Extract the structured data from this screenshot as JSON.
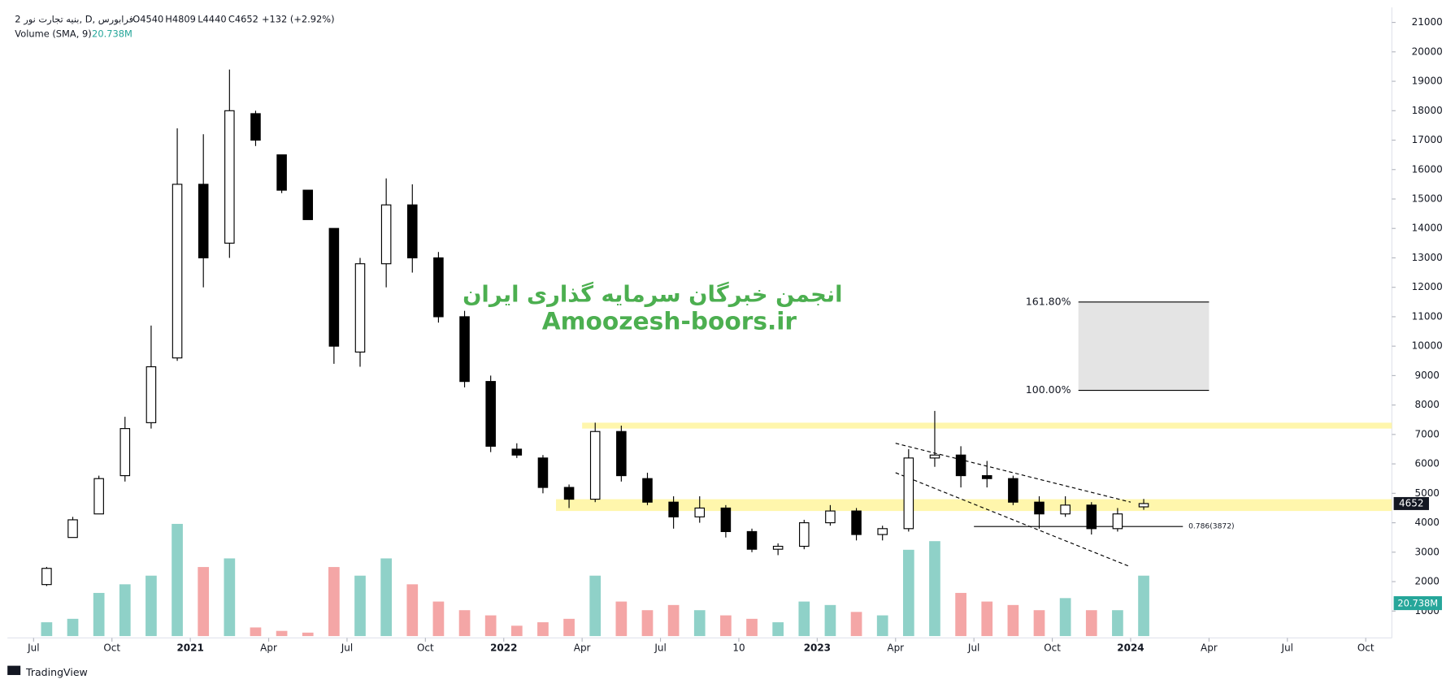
{
  "header": {
    "symbol": "بنیه تجارت نور 2, D, فرابورس",
    "ohlc": [
      "O4540",
      "H4809",
      "L4440",
      "C4652"
    ],
    "change": "+132 (+2.92%)",
    "volume_study": "Volume (SMA, 9)",
    "volume_sma": "20.738M"
  },
  "chart_data": {
    "type": "candlestick",
    "x": [
      "2020-07",
      "2020-08",
      "2020-09",
      "2020-10",
      "2020-11",
      "2020-12",
      "2021-01",
      "2021-02",
      "2021-03",
      "2021-04",
      "2021-05",
      "2021-06",
      "2021-07",
      "2021-08",
      "2021-09",
      "2021-10",
      "2021-11",
      "2021-12",
      "2022-01",
      "2022-02",
      "2022-03",
      "2022-04",
      "2022-05",
      "2022-06",
      "2022-07",
      "2022-08",
      "2022-09",
      "2022-10",
      "2022-11",
      "2022-12",
      "2023-01",
      "2023-02",
      "2023-03",
      "2023-04",
      "2023-05",
      "2023-06",
      "2023-07",
      "2023-08",
      "2023-09",
      "2023-10",
      "2023-11",
      "2023-12",
      "2024-01"
    ],
    "open": [
      1900,
      3500,
      4300,
      5600,
      7400,
      9600,
      15500,
      13500,
      17900,
      16500,
      15300,
      14000,
      9800,
      12800,
      14800,
      13000,
      11000,
      8800,
      6500,
      6200,
      5200,
      4800,
      7100,
      5500,
      4700,
      4200,
      4500,
      3700,
      3100,
      3200,
      4000,
      4400,
      3600,
      3800,
      6200,
      6300,
      5600,
      5500,
      4700,
      4300,
      4600,
      3800,
      4540
    ],
    "high": [
      2500,
      4200,
      5600,
      7600,
      10700,
      17400,
      17200,
      19400,
      18000,
      16500,
      15300,
      14000,
      13000,
      15700,
      15500,
      13200,
      11200,
      9000,
      6700,
      6300,
      5300,
      7400,
      7300,
      5700,
      4900,
      4900,
      4600,
      3800,
      3300,
      4100,
      4600,
      4500,
      3900,
      6500,
      7800,
      6600,
      6100,
      5600,
      4900,
      4900,
      4700,
      4500,
      4809
    ],
    "low": [
      1850,
      3500,
      4300,
      5400,
      7200,
      9500,
      12000,
      13000,
      16800,
      15200,
      14300,
      9400,
      9300,
      12000,
      12500,
      10800,
      8600,
      6400,
      6200,
      5000,
      4500,
      4700,
      5400,
      4600,
      3800,
      4000,
      3500,
      3000,
      2900,
      3100,
      3900,
      3400,
      3400,
      3700,
      5900,
      5200,
      5200,
      4600,
      3800,
      4200,
      3600,
      3700,
      4440
    ],
    "close": [
      2450,
      4100,
      5500,
      7200,
      9300,
      15500,
      13000,
      18000,
      17000,
      15300,
      14300,
      10000,
      12800,
      14800,
      13000,
      11000,
      8800,
      6600,
      6300,
      5200,
      4800,
      7100,
      5600,
      4700,
      4200,
      4500,
      3700,
      3100,
      3200,
      4000,
      4400,
      3600,
      3800,
      6200,
      6300,
      5600,
      5500,
      4700,
      4300,
      4600,
      3800,
      4300,
      4652
    ],
    "volume": [
      8,
      10,
      25,
      30,
      35,
      65,
      40,
      45,
      5,
      3,
      2,
      40,
      35,
      45,
      30,
      20,
      15,
      12,
      6,
      8,
      10,
      35,
      20,
      15,
      18,
      15,
      12,
      10,
      8,
      20,
      18,
      14,
      12,
      50,
      55,
      25,
      20,
      18,
      15,
      22,
      15,
      15,
      35
    ],
    "up_color": "#ffffff",
    "down_color": "#000000",
    "volume_up_color": "#8fd1c8",
    "volume_down_color": "#f4a6a6",
    "ylim": [
      0,
      21500
    ],
    "yticks": [
      1000,
      2000,
      3000,
      4000,
      5000,
      6000,
      7000,
      8000,
      9000,
      10000,
      11000,
      12000,
      13000,
      14000,
      15000,
      16000,
      17000,
      18000,
      19000,
      20000,
      21000
    ],
    "xlim": [
      "2020-06",
      "2024-11"
    ],
    "xticks": [
      {
        "value": "2020-07",
        "label": "Jul"
      },
      {
        "value": "2020-10",
        "label": "Oct"
      },
      {
        "value": "2021-01",
        "label": "2021"
      },
      {
        "value": "2021-04",
        "label": "Apr"
      },
      {
        "value": "2021-07",
        "label": "Jul"
      },
      {
        "value": "2021-10",
        "label": "Oct"
      },
      {
        "value": "2022-01",
        "label": "2022"
      },
      {
        "value": "2022-04",
        "label": "Apr"
      },
      {
        "value": "2022-07",
        "label": "Jul"
      },
      {
        "value": "2022-10",
        "label": "10"
      },
      {
        "value": "2023-01",
        "label": "2023"
      },
      {
        "value": "2023-04",
        "label": "Apr"
      },
      {
        "value": "2023-07",
        "label": "Jul"
      },
      {
        "value": "2023-10",
        "label": "Oct"
      },
      {
        "value": "2024-01",
        "label": "2024"
      },
      {
        "value": "2024-04",
        "label": "Apr"
      },
      {
        "value": "2024-07",
        "label": "Jul"
      },
      {
        "value": "2024-10",
        "label": "Oct"
      }
    ],
    "annotations": {
      "watermark": [
        "انجمن خبرگان سرمایه گذاری ایران",
        "Amoozesh-boors.ir"
      ],
      "zones": [
        {
          "x": [
            "2022-03",
            "2024-11"
          ],
          "y": [
            4400,
            4800
          ]
        },
        {
          "x": [
            "2022-04",
            "2024-11"
          ],
          "y": [
            7200,
            7400
          ]
        }
      ],
      "fib_box": {
        "x": [
          "2023-11",
          "2024-04"
        ],
        "levels": [
          {
            "value": 8500,
            "label": "100.00%"
          },
          {
            "value": 11500,
            "label": "161.80%"
          }
        ]
      },
      "fib_line": {
        "x": [
          "2023-07",
          "2024-03"
        ],
        "value": 3872,
        "label": "0.786(3872)"
      },
      "channel": [
        {
          "x": [
            "2023-04",
            "2024-01"
          ],
          "y": [
            6700,
            4700
          ]
        },
        {
          "x": [
            "2023-04",
            "2024-01"
          ],
          "y": [
            5700,
            2500
          ]
        }
      ]
    }
  },
  "footer": "TradingView"
}
